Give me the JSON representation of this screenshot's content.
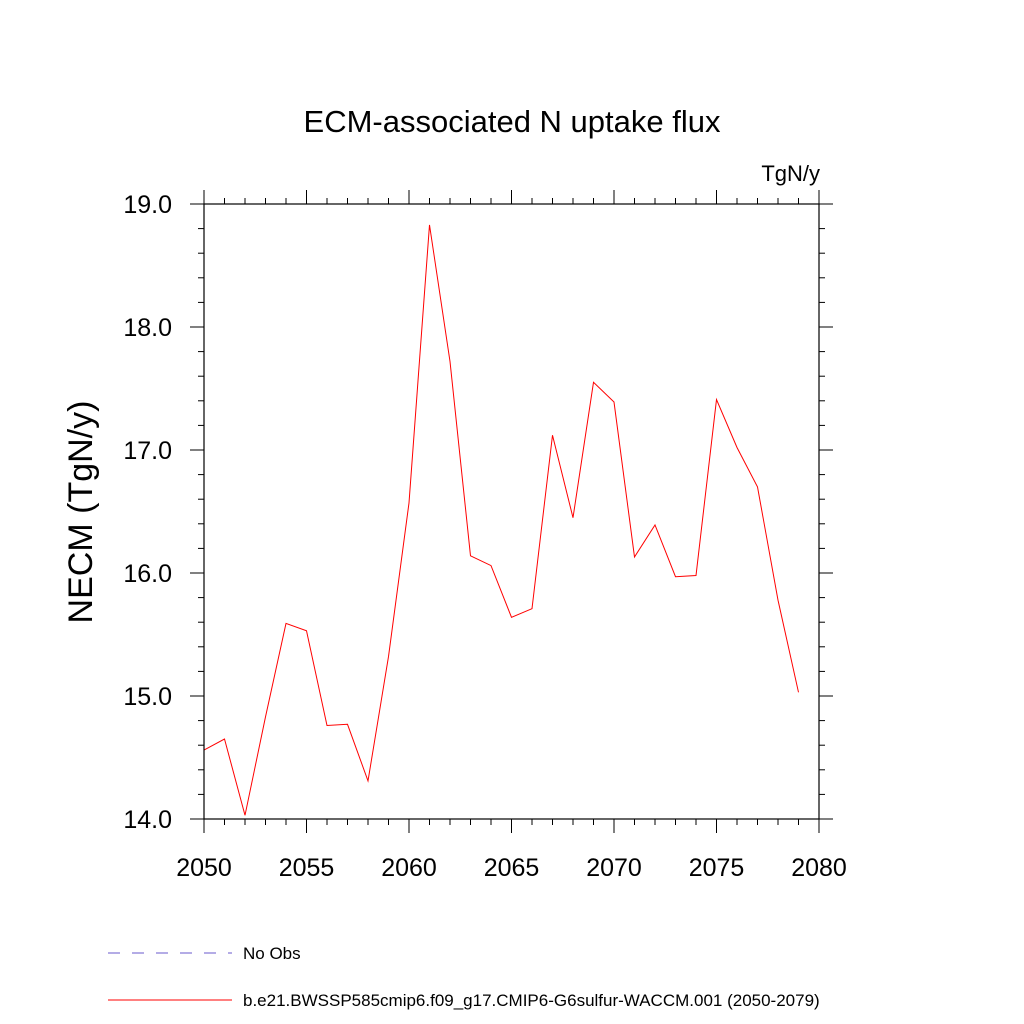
{
  "chart_data": {
    "type": "line",
    "title": "ECM-associated N uptake flux",
    "units": "TgN/y",
    "ylabel": "NECM  (TgN/y)",
    "xlabel": "",
    "xlim": [
      2050,
      2080
    ],
    "ylim": [
      14.0,
      19.0
    ],
    "x_major_ticks": [
      2050,
      2055,
      2060,
      2065,
      2070,
      2075,
      2080
    ],
    "x_tick_labels": [
      "2050",
      "2055",
      "2060",
      "2065",
      "2070",
      "2075",
      "2080"
    ],
    "y_major_ticks": [
      14.0,
      15.0,
      16.0,
      17.0,
      18.0,
      19.0
    ],
    "y_tick_labels": [
      "14.0",
      "15.0",
      "16.0",
      "17.0",
      "18.0",
      "19.0"
    ],
    "grid": false,
    "legend_placement": "bottom",
    "series": [
      {
        "name": "b.e21.BWSSP585cmip6.f09_g17.CMIP6-G6sulfur-WACCM.001 (2050-2079)",
        "color": "#ff0000",
        "x": [
          2050,
          2051,
          2052,
          2053,
          2054,
          2055,
          2056,
          2057,
          2058,
          2059,
          2060,
          2061,
          2062,
          2063,
          2064,
          2065,
          2066,
          2067,
          2068,
          2069,
          2070,
          2071,
          2072,
          2073,
          2074,
          2075,
          2076,
          2077,
          2078,
          2079
        ],
        "values": [
          14.56,
          14.65,
          14.03,
          14.83,
          15.59,
          15.53,
          14.76,
          14.77,
          14.31,
          15.32,
          16.57,
          18.83,
          17.72,
          16.14,
          16.06,
          15.64,
          15.71,
          17.12,
          16.45,
          17.55,
          17.39,
          16.13,
          16.39,
          15.97,
          15.98,
          17.41,
          17.02,
          16.7,
          15.78,
          15.03
        ]
      }
    ],
    "legend": [
      {
        "label": "No Obs",
        "style": "dashed",
        "color": "#6a5acd"
      },
      {
        "label": "b.e21.BWSSP585cmip6.f09_g17.CMIP6-G6sulfur-WACCM.001 (2050-2079)",
        "style": "solid",
        "color": "#ff0000"
      }
    ]
  }
}
